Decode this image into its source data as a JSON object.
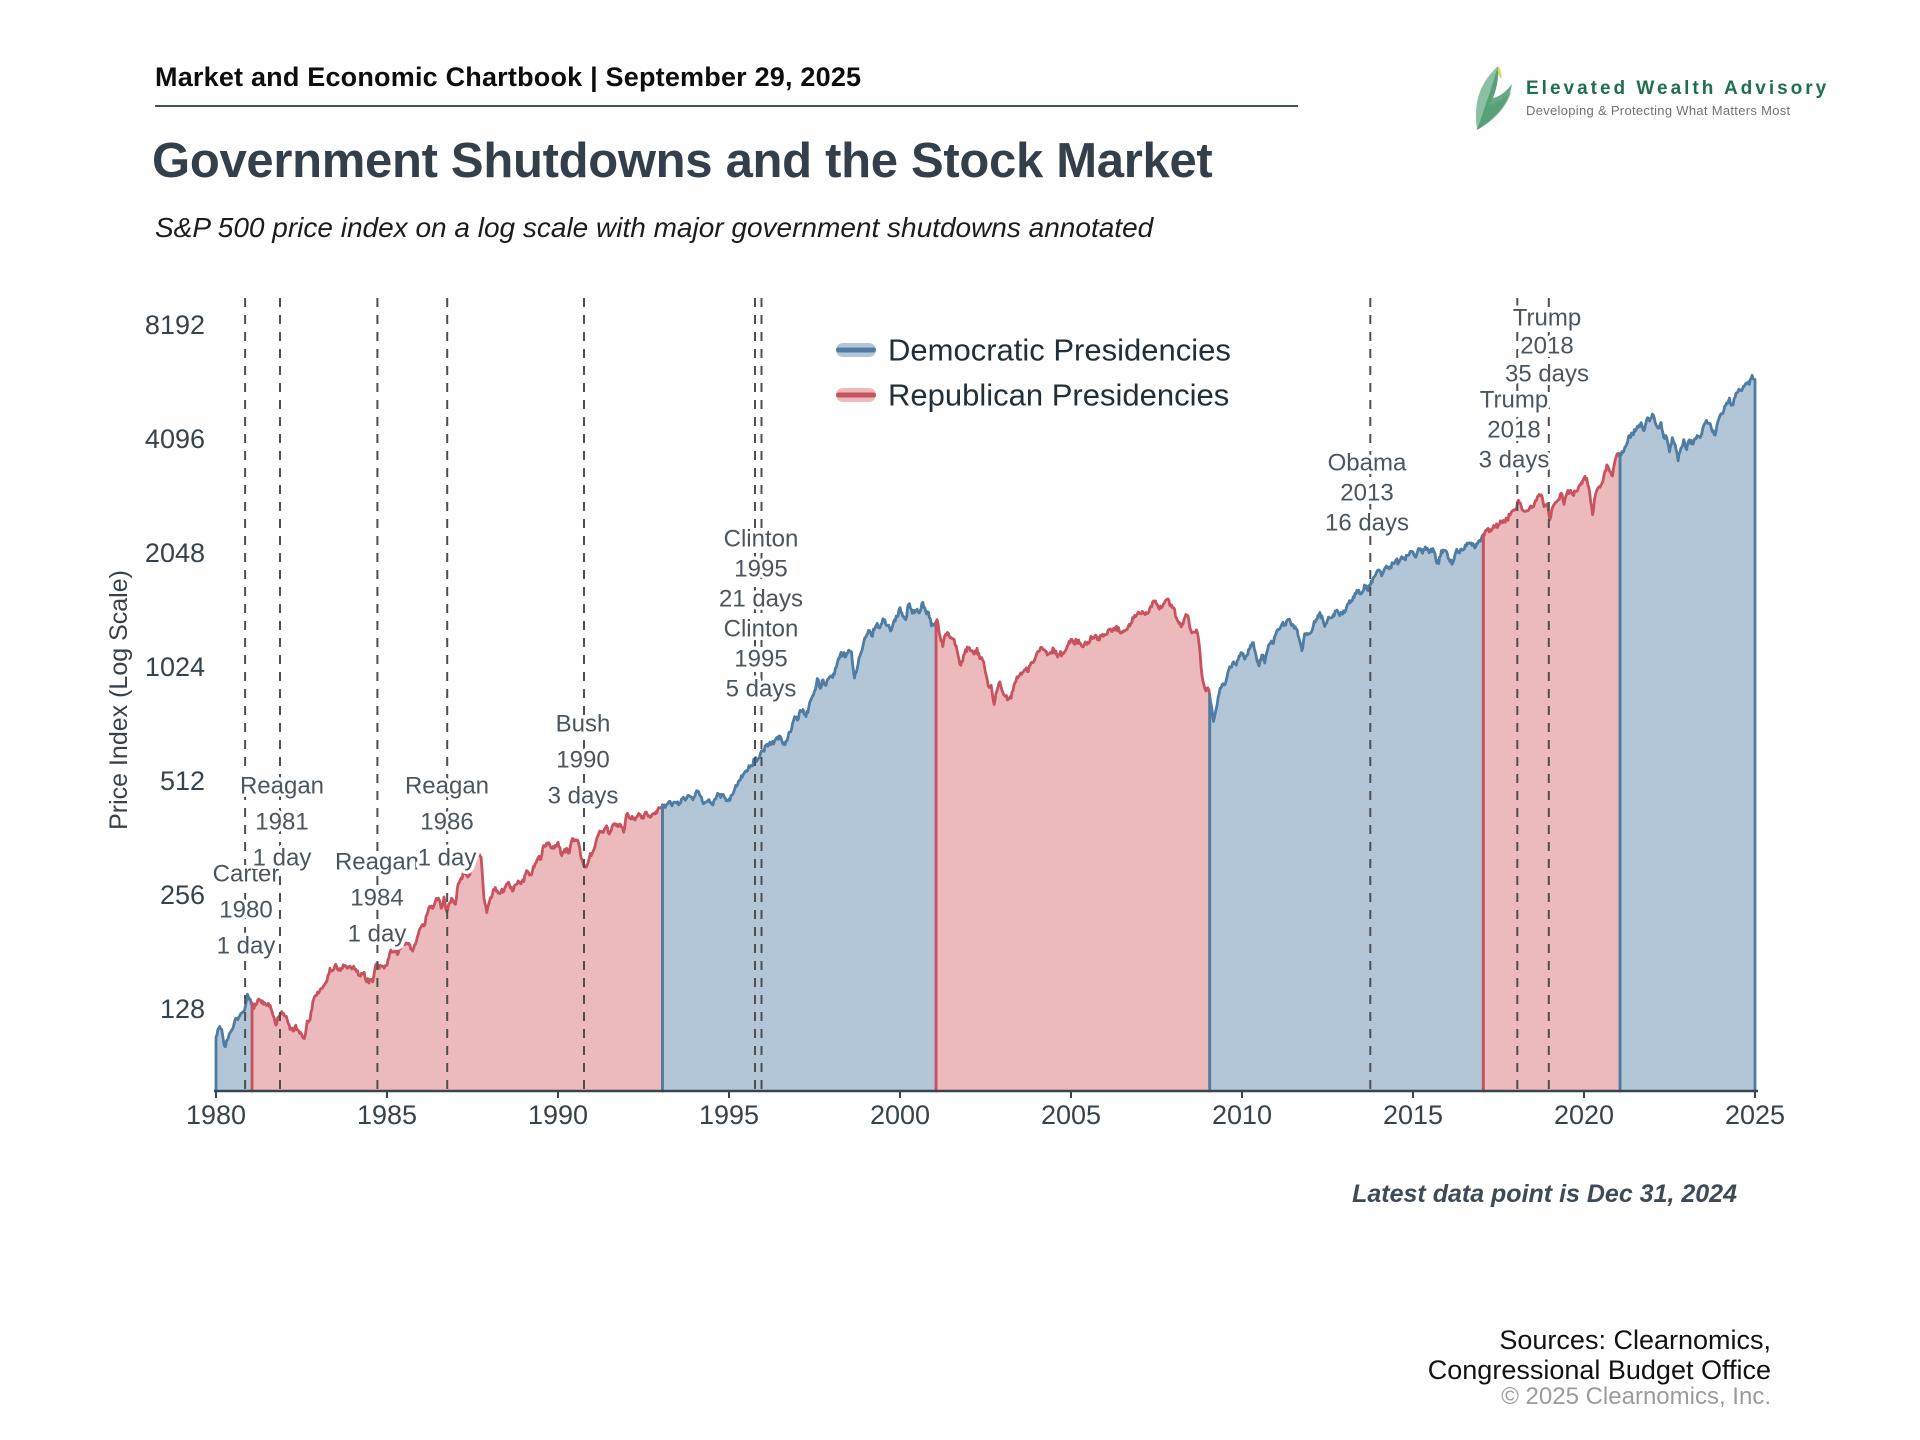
{
  "header": {
    "label": "Market and Economic Chartbook | September 29, 2025"
  },
  "logo": {
    "name": "Elevated Wealth Advisory",
    "tagline": "Developing & Protecting What Matters Most",
    "brand_green": "#1e6f4c"
  },
  "title": "Government Shutdowns and the Stock Market",
  "subtitle": "S&P 500 price index on a log scale with major government shutdowns annotated",
  "footnote": "Latest data point is Dec 31, 2024",
  "sources": {
    "line1": "Sources: Clearnomics,",
    "line2": "Congressional Budget Office",
    "copyright": "© 2025 Clearnomics, Inc."
  },
  "chart_data": {
    "type": "area",
    "title": "Government Shutdowns and the Stock Market",
    "subtitle": "S&P 500 price index on a log scale with major government shutdowns annotated",
    "ylabel": "Price Index (Log Scale)",
    "y_scale": "log2",
    "y_ticks": [
      128,
      256,
      512,
      1024,
      2048,
      4096,
      8192
    ],
    "x_ticks": [
      1980,
      1985,
      1990,
      1995,
      2000,
      2005,
      2010,
      2015,
      2020,
      2025
    ],
    "x_range": [
      1980,
      2025
    ],
    "grid": false,
    "legend_position": "upper-center",
    "legend": [
      {
        "label": "Democratic Presidencies",
        "party": "Democratic"
      },
      {
        "label": "Republican Presidencies",
        "party": "Republican"
      }
    ],
    "colors": {
      "democratic_line": "#4e7ca2",
      "democratic_fill": "#b2c6d8",
      "republican_line": "#c8535f",
      "republican_fill": "#ecb9bd",
      "shutdown_line": "#4f4f4f",
      "axis": "#39454f"
    },
    "presidencies": [
      {
        "party": "Democratic",
        "start": 1980.0,
        "end": 1981.055
      },
      {
        "party": "Republican",
        "start": 1981.055,
        "end": 1993.055
      },
      {
        "party": "Democratic",
        "start": 1993.055,
        "end": 2001.055
      },
      {
        "party": "Republican",
        "start": 2001.055,
        "end": 2009.055
      },
      {
        "party": "Democratic",
        "start": 2009.055,
        "end": 2017.055
      },
      {
        "party": "Republican",
        "start": 2017.055,
        "end": 2021.055
      },
      {
        "party": "Democratic",
        "start": 2021.055,
        "end": 2025.0
      }
    ],
    "shutdowns": [
      {
        "president": "Carter",
        "year": "1980",
        "duration": "1 day",
        "time": 1980.85
      },
      {
        "president": "Reagan",
        "year": "1981",
        "duration": "1 day",
        "time": 1981.87
      },
      {
        "president": "Reagan",
        "year": "1984",
        "duration": "1 day",
        "time": 1984.72
      },
      {
        "president": "Reagan",
        "year": "1986",
        "duration": "1 day",
        "time": 1986.76
      },
      {
        "president": "Bush",
        "year": "1990",
        "duration": "3 days",
        "time": 1990.76
      },
      {
        "president": "Clinton",
        "year": "1995",
        "duration": "21 days",
        "time": 1995.95
      },
      {
        "president": "Clinton",
        "year": "1995",
        "duration": "5 days",
        "time": 1995.76
      },
      {
        "president": "Obama",
        "year": "2013",
        "duration": "16 days",
        "time": 2013.75
      },
      {
        "president": "Trump",
        "year": "2018",
        "duration": "3 days",
        "time": 2018.05
      },
      {
        "president": "Trump",
        "year": "2018",
        "duration": "35 days",
        "time": 2018.97
      }
    ],
    "series_name": "S&P 500 price index",
    "latest_data_point": "Dec 31, 2024",
    "monthly_start_year": 1980,
    "monthly_start_value": 108,
    "monthly_close": [
      114,
      113,
      102,
      106,
      111,
      114,
      121,
      122,
      125,
      127,
      140,
      136,
      130,
      131,
      136,
      133,
      133,
      131,
      131,
      123,
      116,
      122,
      126,
      123,
      120,
      113,
      112,
      116,
      112,
      110,
      107,
      119,
      120,
      134,
      139,
      141,
      145,
      148,
      153,
      164,
      162,
      168,
      162,
      164,
      166,
      164,
      166,
      165,
      163,
      157,
      159,
      160,
      151,
      153,
      151,
      167,
      166,
      166,
      164,
      167,
      180,
      181,
      181,
      180,
      190,
      192,
      191,
      189,
      182,
      190,
      202,
      211,
      212,
      227,
      239,
      236,
      247,
      251,
      236,
      253,
      231,
      244,
      249,
      242,
      274,
      284,
      292,
      288,
      290,
      304,
      319,
      330,
      322,
      252,
      230,
      247,
      257,
      268,
      259,
      261,
      262,
      274,
      272,
      262,
      272,
      279,
      274,
      278,
      297,
      289,
      295,
      310,
      321,
      318,
      346,
      351,
      349,
      340,
      346,
      353,
      329,
      332,
      340,
      331,
      361,
      358,
      356,
      323,
      306,
      304,
      322,
      330,
      344,
      367,
      375,
      375,
      390,
      371,
      388,
      395,
      388,
      392,
      375,
      417,
      409,
      413,
      404,
      415,
      415,
      408,
      424,
      414,
      418,
      419,
      431,
      436,
      439,
      443,
      452,
      440,
      450,
      451,
      448,
      464,
      459,
      468,
      462,
      466,
      482,
      467,
      446,
      451,
      457,
      444,
      458,
      475,
      463,
      472,
      454,
      459,
      470,
      487,
      501,
      515,
      533,
      545,
      562,
      562,
      584,
      582,
      605,
      616,
      636,
      640,
      646,
      654,
      669,
      671,
      640,
      652,
      687,
      705,
      757,
      741,
      786,
      791,
      757,
      801,
      848,
      885,
      954,
      899,
      947,
      915,
      955,
      970,
      980,
      1049,
      1102,
      1112,
      1091,
      1134,
      1121,
      957,
      1017,
      1099,
      1164,
      1229,
      1280,
      1238,
      1286,
      1335,
      1302,
      1373,
      1329,
      1320,
      1283,
      1363,
      1389,
      1469,
      1394,
      1366,
      1499,
      1452,
      1421,
      1455,
      1431,
      1518,
      1437,
      1429,
      1315,
      1320,
      1366,
      1240,
      1160,
      1249,
      1256,
      1224,
      1211,
      1134,
      1041,
      1060,
      1139,
      1148,
      1130,
      1107,
      1147,
      1077,
      1067,
      990,
      911,
      916,
      815,
      886,
      936,
      880,
      856,
      841,
      848,
      917,
      964,
      975,
      990,
      1008,
      996,
      1051,
      1058,
      1112,
      1131,
      1145,
      1126,
      1107,
      1121,
      1141,
      1102,
      1104,
      1115,
      1130,
      1174,
      1212,
      1181,
      1204,
      1181,
      1157,
      1192,
      1191,
      1234,
      1220,
      1229,
      1207,
      1249,
      1248,
      1280,
      1281,
      1295,
      1311,
      1270,
      1270,
      1277,
      1304,
      1336,
      1378,
      1401,
      1418,
      1438,
      1407,
      1421,
      1482,
      1531,
      1503,
      1455,
      1474,
      1527,
      1549,
      1481,
      1468,
      1379,
      1331,
      1323,
      1386,
      1400,
      1280,
      1267,
      1283,
      1166,
      969,
      896,
      903,
      826,
      735,
      798,
      873,
      919,
      919,
      987,
      1021,
      1057,
      1036,
      1096,
      1115,
      1074,
      1104,
      1169,
      1187,
      1089,
      1031,
      1102,
      1049,
      1141,
      1183,
      1181,
      1258,
      1286,
      1327,
      1326,
      1364,
      1345,
      1321,
      1292,
      1219,
      1131,
      1253,
      1247,
      1258,
      1312,
      1366,
      1408,
      1398,
      1310,
      1362,
      1379,
      1407,
      1441,
      1412,
      1416,
      1426,
      1498,
      1515,
      1569,
      1598,
      1631,
      1606,
      1686,
      1633,
      1682,
      1757,
      1806,
      1848,
      1783,
      1859,
      1872,
      1884,
      1924,
      1960,
      1931,
      2003,
      1972,
      2018,
      2068,
      2059,
      1995,
      2105,
      2068,
      2086,
      2107,
      2063,
      2104,
      1972,
      1920,
      2079,
      2080,
      2044,
      1940,
      1932,
      2060,
      2065,
      2097,
      2099,
      2174,
      2171,
      2168,
      2126,
      2199,
      2239,
      2279,
      2364,
      2363,
      2384,
      2412,
      2423,
      2470,
      2472,
      2519,
      2575,
      2648,
      2674,
      2824,
      2714,
      2641,
      2648,
      2705,
      2718,
      2816,
      2902,
      2914,
      2712,
      2760,
      2507,
      2704,
      2784,
      2834,
      2946,
      2752,
      2942,
      2980,
      2926,
      2977,
      3038,
      3141,
      3231,
      3226,
      2954,
      2585,
      2912,
      3044,
      3100,
      3271,
      3500,
      3363,
      3270,
      3622,
      3756,
      3714,
      3811,
      3973,
      4181,
      4204,
      4298,
      4395,
      4523,
      4308,
      4605,
      4567,
      4766,
      4516,
      4374,
      4530,
      4132,
      4132,
      3785,
      4130,
      3955,
      3586,
      3872,
      4080,
      3840,
      4077,
      3970,
      4109,
      4169,
      4180,
      4450,
      4589,
      4508,
      4288,
      4194,
      4568,
      4770,
      4846,
      5096,
      5254,
      5036,
      5278,
      5460,
      5522,
      5648,
      5762,
      5705,
      6032,
      5882
    ]
  }
}
